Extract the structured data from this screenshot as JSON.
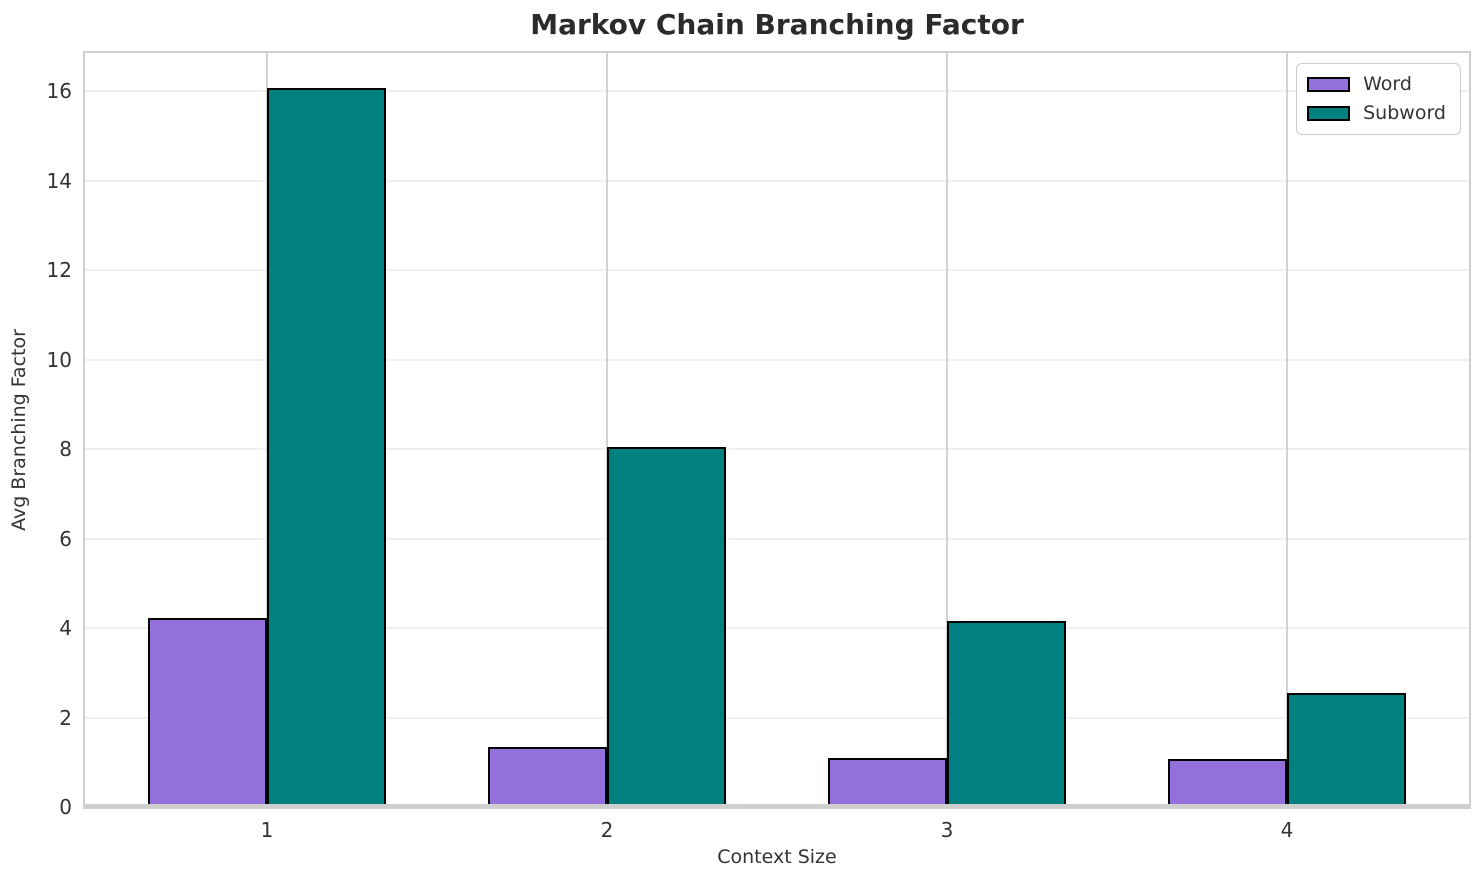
{
  "chart_data": {
    "type": "bar",
    "title": "Markov Chain Branching Factor",
    "xlabel": "Context Size",
    "ylabel": "Avg Branching Factor",
    "categories": [
      "1",
      "2",
      "3",
      "4"
    ],
    "series": [
      {
        "name": "Word",
        "color": "#9370db",
        "values": [
          4.23,
          1.34,
          1.1,
          1.07
        ]
      },
      {
        "name": "Subword",
        "color": "#008080",
        "values": [
          16.08,
          8.05,
          4.16,
          2.55
        ]
      }
    ],
    "ylim": [
      0,
      16.86
    ],
    "yticks": [
      0,
      2,
      4,
      6,
      8,
      10,
      12,
      14,
      16
    ],
    "grid": true,
    "legend_position": "upper-right",
    "bar_edge_color": "#000000"
  },
  "style": {
    "background": "#ffffff",
    "title_color": "#2b2b2b",
    "label_color": "#333333",
    "tick_color": "#333333",
    "spine_color": "#cfcfcf",
    "hgrid_color": "#f0f0f0",
    "vgrid_color": "#d2d2d2",
    "legend_border_color": "#cccccc",
    "word_color": "#9370db",
    "subword_color": "#008080"
  }
}
